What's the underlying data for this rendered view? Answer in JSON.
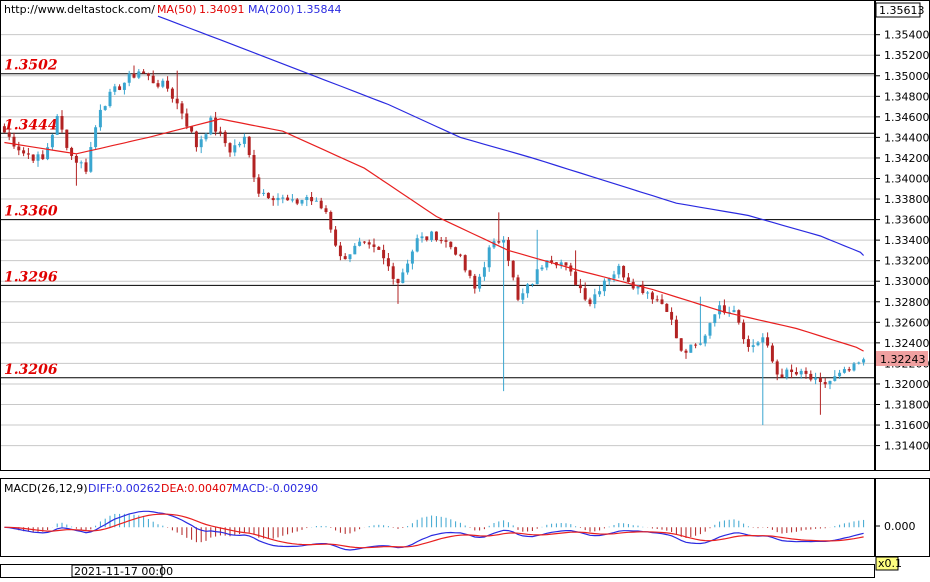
{
  "header": {
    "url": "http://www.deltastock.com/",
    "ma50_label": "MA(50)",
    "ma50_value": "1.34091",
    "ma200_label": "MA(200)",
    "ma200_value": "1.35844"
  },
  "macd_header": {
    "title": "MACD(26,12,9)",
    "diff": "DIFF:0.00262",
    "dea": "DEA:0.00407",
    "macd": "MACD:-0.00290"
  },
  "footer": {
    "date_label": "2021-11-17 00:00",
    "zoom_label": "x0.1"
  },
  "price_axis": {
    "top_value": "1.35613",
    "current_value": "1.32243",
    "ticks": [
      "1.35400",
      "1.35200",
      "1.35000",
      "1.34800",
      "1.34600",
      "1.34400",
      "1.34200",
      "1.34000",
      "1.33800",
      "1.33600",
      "1.33400",
      "1.33200",
      "1.33000",
      "1.32800",
      "1.32600",
      "1.32400",
      "1.32200",
      "1.32000",
      "1.31800",
      "1.31600",
      "1.31400"
    ]
  },
  "macd_axis": {
    "zero_label": "0.000"
  },
  "levels": [
    {
      "label": "1.3502",
      "value": 1.3502
    },
    {
      "label": "1.3444",
      "value": 1.3444
    },
    {
      "label": "1.3360",
      "value": 1.336
    },
    {
      "label": "1.3296",
      "value": 1.3296
    },
    {
      "label": "1.3206",
      "value": 1.3206
    }
  ],
  "colors": {
    "bull": "#3aa6d0",
    "bear": "#b22222",
    "ma50": "#e82020",
    "ma200": "#2a2ae0",
    "level": "#e00000",
    "grid": "#c8c8c8",
    "current_price_bg": "#f0a0a0"
  },
  "chart_data": {
    "type": "candlestick",
    "ylim": [
      1.3125,
      1.3565
    ],
    "macd_ylim": [
      -0.004,
      0.0035
    ],
    "candles_count": 180,
    "anchors": [
      [
        0,
        1.3445
      ],
      [
        4,
        1.3425
      ],
      [
        8,
        1.3418
      ],
      [
        11,
        1.3458
      ],
      [
        14,
        1.3422
      ],
      [
        17,
        1.341
      ],
      [
        20,
        1.347
      ],
      [
        24,
        1.349
      ],
      [
        28,
        1.3505
      ],
      [
        31,
        1.3495
      ],
      [
        34,
        1.3488
      ],
      [
        37,
        1.3465
      ],
      [
        40,
        1.3432
      ],
      [
        43,
        1.3455
      ],
      [
        47,
        1.3428
      ],
      [
        50,
        1.3438
      ],
      [
        53,
        1.3388
      ],
      [
        57,
        1.3382
      ],
      [
        60,
        1.3375
      ],
      [
        63,
        1.3382
      ],
      [
        67,
        1.3368
      ],
      [
        70,
        1.3322
      ],
      [
        74,
        1.3335
      ],
      [
        78,
        1.3328
      ],
      [
        82,
        1.33
      ],
      [
        86,
        1.334
      ],
      [
        90,
        1.3345
      ],
      [
        94,
        1.333
      ],
      [
        98,
        1.3292
      ],
      [
        101,
        1.333
      ],
      [
        104,
        1.3345
      ],
      [
        107,
        1.328
      ],
      [
        110,
        1.33
      ],
      [
        113,
        1.3325
      ],
      [
        116,
        1.3318
      ],
      [
        119,
        1.33
      ],
      [
        122,
        1.328
      ],
      [
        125,
        1.3302
      ],
      [
        128,
        1.3312
      ],
      [
        131,
        1.3298
      ],
      [
        134,
        1.329
      ],
      [
        138,
        1.3275
      ],
      [
        141,
        1.323
      ],
      [
        145,
        1.3238
      ],
      [
        148,
        1.3272
      ],
      [
        152,
        1.3275
      ],
      [
        155,
        1.3235
      ],
      [
        158,
        1.3245
      ],
      [
        161,
        1.321
      ],
      [
        164,
        1.321
      ],
      [
        167,
        1.3208
      ],
      [
        170,
        1.3198
      ],
      [
        174,
        1.3208
      ],
      [
        177,
        1.3215
      ],
      [
        179,
        1.3224
      ]
    ],
    "spikes": [
      {
        "i": 15,
        "low": 1.3393
      },
      {
        "i": 27,
        "high": 1.351
      },
      {
        "i": 36,
        "high": 1.3505
      },
      {
        "i": 82,
        "low": 1.3278
      },
      {
        "i": 103,
        "high": 1.3367
      },
      {
        "i": 104,
        "low": 1.3193
      },
      {
        "i": 111,
        "high": 1.335
      },
      {
        "i": 119,
        "high": 1.333
      },
      {
        "i": 130,
        "high": 1.3308
      },
      {
        "i": 145,
        "high": 1.3285
      },
      {
        "i": 158,
        "low": 1.316
      },
      {
        "i": 170,
        "low": 1.317
      }
    ],
    "ma50_points": [
      [
        0,
        1.3435
      ],
      [
        15,
        1.3424
      ],
      [
        30,
        1.344
      ],
      [
        45,
        1.3458
      ],
      [
        58,
        1.3446
      ],
      [
        75,
        1.341
      ],
      [
        90,
        1.3363
      ],
      [
        105,
        1.333
      ],
      [
        120,
        1.331
      ],
      [
        135,
        1.3292
      ],
      [
        150,
        1.327
      ],
      [
        165,
        1.3254
      ],
      [
        180,
        1.3232
      ]
    ],
    "ma200_points": [
      [
        32,
        1.3558
      ],
      [
        45,
        1.3535
      ],
      [
        60,
        1.3508
      ],
      [
        80,
        1.3472
      ],
      [
        95,
        1.344
      ],
      [
        110,
        1.342
      ],
      [
        125,
        1.3398
      ],
      [
        140,
        1.3376
      ],
      [
        155,
        1.3364
      ],
      [
        170,
        1.3344
      ],
      [
        180,
        1.3325
      ]
    ]
  }
}
